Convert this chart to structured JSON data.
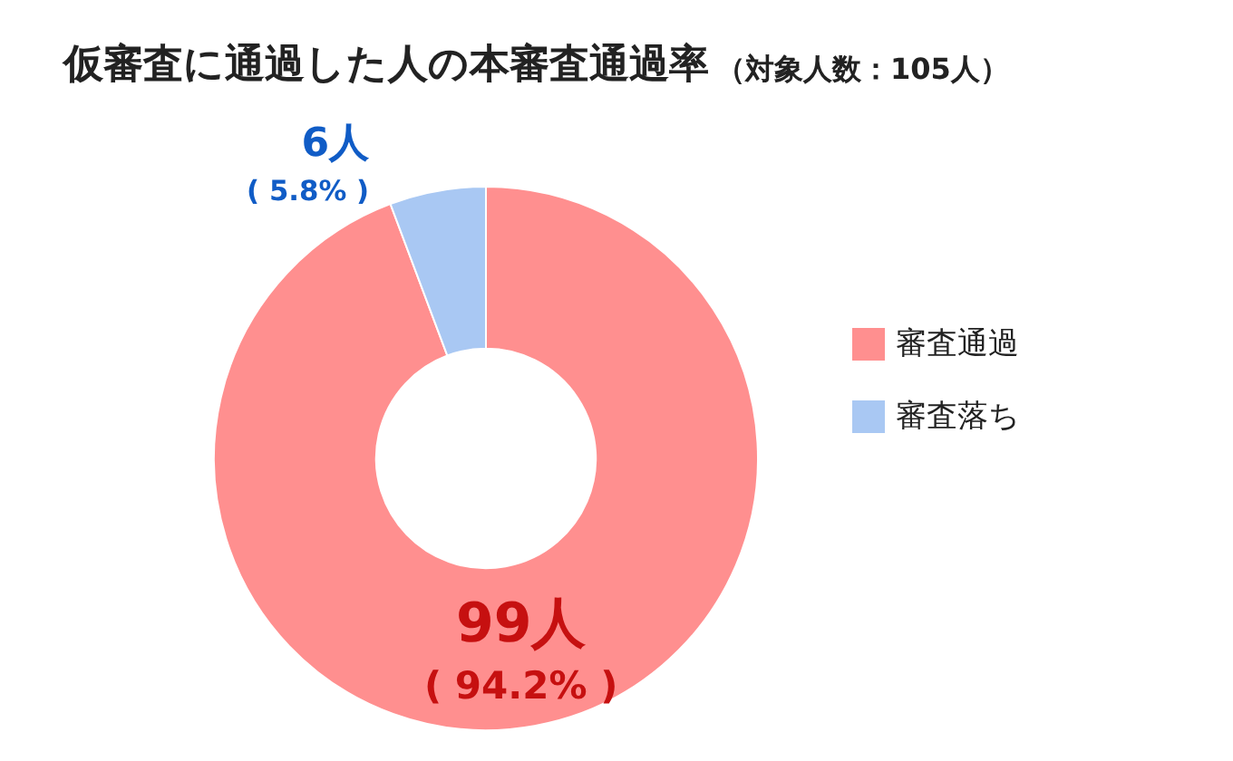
{
  "chart_data": {
    "type": "donut",
    "title": "仮審査に通過した人の本審査通過率",
    "subtitle": "（対象人数：105人）",
    "categories": [
      "審査通過",
      "審査落ち"
    ],
    "values": [
      99,
      6
    ],
    "colors": [
      "#ff8f8f",
      "#a9c8f3"
    ],
    "value_labels": [
      "99人\n( 94.2% )",
      "6人\n( 5.8% )"
    ],
    "legend": "right"
  }
}
